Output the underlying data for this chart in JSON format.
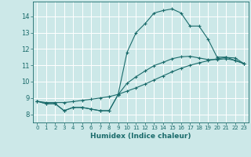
{
  "xlabel": "Humidex (Indice chaleur)",
  "background_color": "#cce8e8",
  "grid_color": "#ffffff",
  "line_color": "#1a6b6b",
  "xlim": [
    -0.5,
    23.5
  ],
  "ylim": [
    7.5,
    14.9
  ],
  "xticks": [
    0,
    1,
    2,
    3,
    4,
    5,
    6,
    7,
    8,
    9,
    10,
    11,
    12,
    13,
    14,
    15,
    16,
    17,
    18,
    19,
    20,
    21,
    22,
    23
  ],
  "yticks": [
    8,
    9,
    10,
    11,
    12,
    13,
    14
  ],
  "series1_x": [
    0,
    1,
    2,
    3,
    4,
    5,
    6,
    7,
    8,
    9,
    10,
    11,
    12,
    13,
    14,
    15,
    16,
    17,
    18,
    19,
    20,
    21,
    22,
    23
  ],
  "series1_y": [
    8.8,
    8.65,
    8.65,
    8.22,
    8.42,
    8.42,
    8.32,
    8.22,
    8.22,
    9.2,
    11.8,
    13.0,
    13.55,
    14.2,
    14.35,
    14.45,
    14.2,
    13.4,
    13.4,
    12.6,
    11.5,
    11.5,
    11.3,
    11.1
  ],
  "series2_x": [
    0,
    1,
    2,
    3,
    4,
    5,
    6,
    7,
    8,
    9,
    10,
    11,
    12,
    13,
    14,
    15,
    16,
    17,
    18,
    19,
    20,
    21,
    22,
    23
  ],
  "series2_y": [
    8.8,
    8.72,
    8.72,
    8.72,
    8.78,
    8.85,
    8.92,
    9.0,
    9.08,
    9.22,
    9.42,
    9.62,
    9.85,
    10.1,
    10.35,
    10.6,
    10.82,
    11.0,
    11.15,
    11.28,
    11.4,
    11.48,
    11.45,
    11.1
  ],
  "series3_x": [
    0,
    1,
    2,
    3,
    4,
    5,
    6,
    7,
    8,
    9,
    10,
    11,
    12,
    13,
    14,
    15,
    16,
    17,
    18,
    19,
    20,
    21,
    22,
    23
  ],
  "series3_y": [
    8.8,
    8.65,
    8.65,
    8.22,
    8.42,
    8.42,
    8.32,
    8.22,
    8.22,
    9.2,
    9.9,
    10.3,
    10.65,
    10.98,
    11.18,
    11.4,
    11.52,
    11.55,
    11.45,
    11.35,
    11.35,
    11.4,
    11.3,
    11.1
  ]
}
